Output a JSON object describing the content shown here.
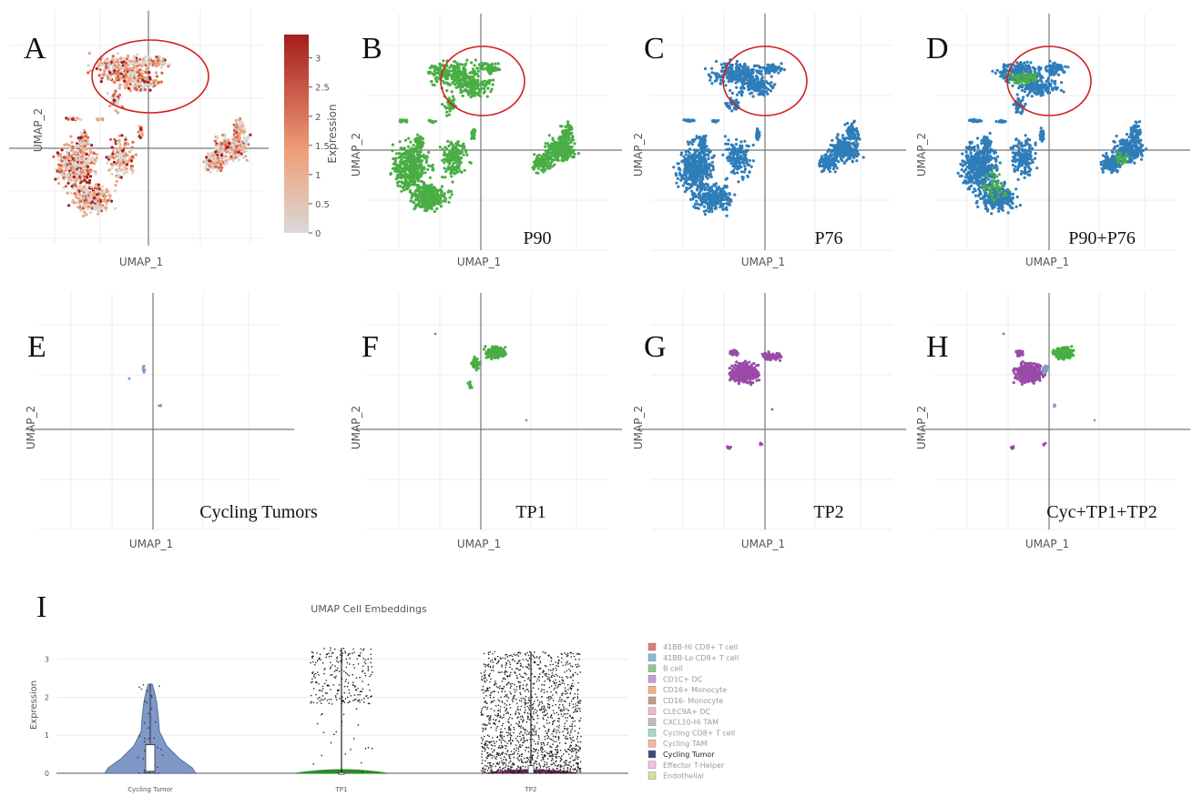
{
  "colors": {
    "green": "#49ae45",
    "blue": "#2f7db9",
    "purple": "#9a4ba8",
    "lavender": "#7f9bcf",
    "grey_cell": "#d6d6d6",
    "expr_low": "#d9d9d9",
    "expr_mid": "#f0a07a",
    "expr_high": "#a61c1c",
    "highlight_circle": "#d32020"
  },
  "chart_data": [
    {
      "type": "scatter",
      "panel": "A",
      "xlabel": "UMAP_1",
      "ylabel": "UMAP_2",
      "color": "expression",
      "colorbar": {
        "title": "Expression",
        "ticks": [
          "0",
          "0.5",
          "1",
          "1.5",
          "2",
          "2.5",
          "3"
        ],
        "range": [
          0,
          3.4
        ]
      },
      "annotation": "red ellipse around upper cluster"
    },
    {
      "type": "scatter",
      "panel": "B",
      "subtitle": "P90",
      "xlabel": "UMAP_1",
      "ylabel": "UMAP_2",
      "color": "green",
      "annotation": "red ellipse around upper cluster"
    },
    {
      "type": "scatter",
      "panel": "C",
      "subtitle": "P76",
      "xlabel": "UMAP_1",
      "ylabel": "UMAP_2",
      "color": "blue",
      "annotation": "red ellipse around upper cluster"
    },
    {
      "type": "scatter",
      "panel": "D",
      "subtitle": "P90+P76",
      "xlabel": "UMAP_1",
      "ylabel": "UMAP_2",
      "color": "blue+green",
      "annotation": "red ellipse around upper cluster"
    },
    {
      "type": "scatter",
      "panel": "E",
      "subtitle": "Cycling Tumors",
      "xlabel": "UMAP_1",
      "ylabel": "UMAP_2",
      "color": "lavender"
    },
    {
      "type": "scatter",
      "panel": "F",
      "subtitle": "TP1",
      "xlabel": "UMAP_1",
      "ylabel": "UMAP_2",
      "color": "green"
    },
    {
      "type": "scatter",
      "panel": "G",
      "subtitle": "TP2",
      "xlabel": "UMAP_1",
      "ylabel": "UMAP_2",
      "color": "purple"
    },
    {
      "type": "scatter",
      "panel": "H",
      "subtitle": "Cyc+TP1+TP2",
      "xlabel": "UMAP_1",
      "ylabel": "UMAP_2",
      "color": "purple+green+lavender"
    },
    {
      "type": "violin",
      "panel": "I",
      "title": "UMAP Cell Embeddings",
      "ylabel": "Expression",
      "ylim": [
        0,
        3.4
      ],
      "yticks": [
        "0",
        "1",
        "2",
        "3"
      ],
      "categories": [
        "Cycling Tumor",
        "TP1",
        "TP2"
      ],
      "groups": [
        {
          "category": "Cycling Tumor",
          "max": 2.35,
          "median": 0.05,
          "q3": 0.75
        },
        {
          "category": "TP1",
          "max": 3.3,
          "median": 0.0,
          "q3": 0.02
        },
        {
          "category": "TP2",
          "max": 3.2,
          "median": 0.0,
          "q3": 0.2
        }
      ],
      "legend": {
        "position": "right",
        "entries": [
          {
            "label": "41BB-Hi CD8+ T cell",
            "color": "#e07a7a"
          },
          {
            "label": "41BB-Lo CD8+ T cell",
            "color": "#8fb3d9"
          },
          {
            "label": "B cell",
            "color": "#8dc98a"
          },
          {
            "label": "CD1C+ DC",
            "color": "#c79bd6"
          },
          {
            "label": "CD16+ Monocyte",
            "color": "#f2b37a"
          },
          {
            "label": "CD16- Monocyte",
            "color": "#c49a8c"
          },
          {
            "label": "CLEC9A+ DC",
            "color": "#f0b6d2"
          },
          {
            "label": "CXCL10-Hi TAM",
            "color": "#bdbdbd"
          },
          {
            "label": "Cycling CD8+ T cell",
            "color": "#a9d6cf"
          },
          {
            "label": "Cycling TAM",
            "color": "#f5b99c"
          },
          {
            "label": "Cycling Tumor",
            "color": "#3b4b73",
            "highlight": true
          },
          {
            "label": "Effector T-Helper",
            "color": "#f3c0dc"
          },
          {
            "label": "Endothelial",
            "color": "#cde59a"
          }
        ]
      }
    }
  ]
}
